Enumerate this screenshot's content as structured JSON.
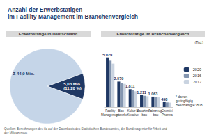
{
  "title": "Anzahl der Erwerbstätigen\nim Facility Management im Branchenvergleich",
  "footnote": "Quellen: Berechnungen des ifo auf der Datenbasis des Statistischen Bundesamtes, der Bundesagentur für Arbeit und der Mikrozensus",
  "chart_data": [
    {
      "type": "pie",
      "title": "Erwerbstätige in Deutschland",
      "values": [
        11.2,
        88.8
      ],
      "value_labels": [
        "5,03 Mio.\n(11,20 %)",
        "Σ 44,9 Mio."
      ],
      "colors": [
        "#1f3864",
        "#c5d5e8"
      ],
      "data_labels": true
    },
    {
      "type": "bar",
      "title": "Erwerbstätige im Branchenvergleich",
      "subtitle": "(Tsd.)",
      "categories": [
        "Facility\nManagement",
        "Bau-\ngewerbe",
        "Kultur &\nKreative",
        "Maschinen-\nbau",
        "Fahrzeug-\nbau",
        "Chemie/\nPharma"
      ],
      "series": [
        {
          "name": "2020",
          "color": "#1f3864",
          "values": [
            5029,
            2579,
            1811,
            1211,
            1063,
            498
          ],
          "value_labels": [
            "5.029",
            "2.579",
            "1.811",
            "1.211",
            "1.063",
            "498"
          ],
          "data_labels": true
        },
        {
          "name": "2016",
          "color": "#8496b0",
          "values": [
            4700,
            2450,
            1700,
            1150,
            1020,
            470
          ]
        },
        {
          "name": "2012",
          "color": "#c9d3e0",
          "values": [
            4400,
            2350,
            1600,
            1100,
            980,
            450
          ]
        }
      ],
      "ylim": [
        0,
        5500
      ],
      "grid": false,
      "tick_labels": "x",
      "legend": "right",
      "annotations": [
        "* davon geringfügig Beschäftigte: 808"
      ]
    }
  ]
}
